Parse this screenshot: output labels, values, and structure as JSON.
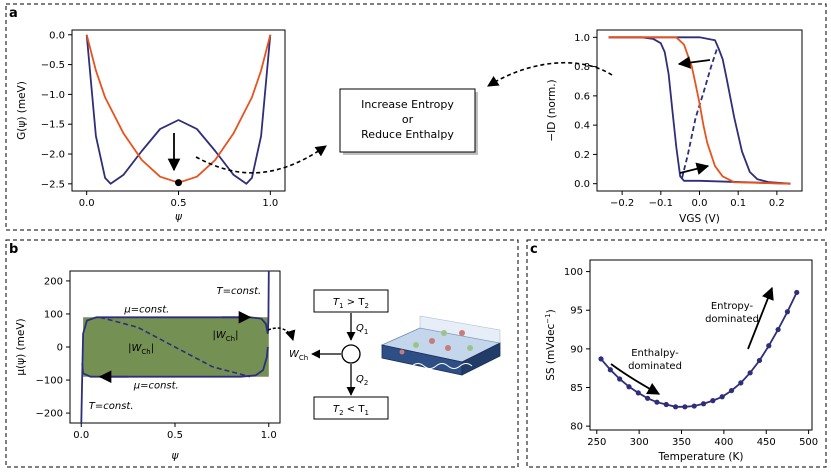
{
  "panel_labels": [
    "a",
    "b",
    "c"
  ],
  "colors": {
    "blue": "#2e2e7a",
    "orange": "#e8521c",
    "green": "#6e8a4a"
  },
  "chart_data": [
    {
      "id": "a_left",
      "type": "line",
      "xlabel": "ψ",
      "ylabel": "G(ψ) (meV)",
      "xlim": [
        -0.08,
        1.08
      ],
      "ylim": [
        -2.62,
        0.08
      ],
      "xticks": [
        0.0,
        0.5,
        1.0
      ],
      "xtick_labels": [
        "0.0",
        "0.5",
        "1.0"
      ],
      "yticks": [
        0.0,
        -0.5,
        -1.0,
        -1.5,
        -2.0,
        -2.5
      ],
      "ytick_labels": [
        "0.0",
        "−0.5",
        "−1.0",
        "−1.5",
        "−2.0",
        "−2.5"
      ],
      "series": [
        {
          "color": "#2e2e7a",
          "x": [
            0.0,
            0.05,
            0.1,
            0.13,
            0.2,
            0.3,
            0.4,
            0.5,
            0.6,
            0.7,
            0.8,
            0.87,
            0.9,
            0.95,
            1.0
          ],
          "y": [
            0.0,
            -1.7,
            -2.4,
            -2.5,
            -2.35,
            -1.95,
            -1.58,
            -1.43,
            -1.58,
            -1.95,
            -2.35,
            -2.5,
            -2.4,
            -1.7,
            0.0
          ]
        },
        {
          "color": "#e8521c",
          "x": [
            0.0,
            0.05,
            0.1,
            0.2,
            0.3,
            0.4,
            0.5,
            0.6,
            0.7,
            0.8,
            0.9,
            0.95,
            1.0
          ],
          "y": [
            0.0,
            -0.6,
            -1.05,
            -1.65,
            -2.1,
            -2.38,
            -2.48,
            -2.38,
            -2.1,
            -1.65,
            -1.05,
            -0.6,
            0.0
          ]
        }
      ]
    },
    {
      "id": "a_right",
      "type": "line",
      "xlabel": "VGS (V)",
      "ylabel": "−ID (norm.)",
      "xlim": [
        -0.265,
        0.265
      ],
      "ylim": [
        -0.05,
        1.05
      ],
      "xticks": [
        -0.2,
        -0.1,
        0.0,
        0.1,
        0.2
      ],
      "xtick_labels": [
        "−0.2",
        "−0.1",
        "0.0",
        "0.1",
        "0.2"
      ],
      "yticks": [
        0.0,
        0.2,
        0.4,
        0.6,
        0.8,
        1.0
      ],
      "ytick_labels": [
        "0.0",
        "0.2",
        "0.4",
        "0.6",
        "0.8",
        "1.0"
      ],
      "series": [
        {
          "color": "#2e2e7a",
          "style": "solid",
          "x": [
            -0.235,
            -0.15,
            -0.12,
            -0.1,
            -0.09,
            -0.08,
            -0.07,
            -0.06,
            -0.05,
            -0.04,
            0.0,
            0.235
          ],
          "y": [
            1.0,
            1.0,
            0.99,
            0.96,
            0.9,
            0.75,
            0.5,
            0.25,
            0.05,
            0.02,
            0.02,
            0.0
          ]
        },
        {
          "color": "#2e2e7a",
          "style": "solid",
          "x": [
            -0.235,
            0.0,
            0.04,
            0.05,
            0.06,
            0.07,
            0.09,
            0.11,
            0.13,
            0.15,
            0.18,
            0.235
          ],
          "y": [
            1.0,
            1.0,
            0.98,
            0.92,
            0.85,
            0.72,
            0.45,
            0.22,
            0.08,
            0.03,
            0.01,
            0.0
          ]
        },
        {
          "color": "#2e2e7a",
          "style": "dashed",
          "x": [
            -0.045,
            -0.03,
            -0.01,
            0.01,
            0.03,
            0.045
          ],
          "y": [
            0.04,
            0.2,
            0.45,
            0.62,
            0.8,
            0.92
          ]
        },
        {
          "color": "#e8521c",
          "style": "solid",
          "x": [
            -0.235,
            -0.06,
            -0.04,
            -0.02,
            -0.01,
            0.0,
            0.01,
            0.02,
            0.04,
            0.06,
            0.09,
            0.235
          ],
          "y": [
            1.0,
            1.0,
            0.95,
            0.8,
            0.68,
            0.55,
            0.4,
            0.28,
            0.12,
            0.05,
            0.01,
            0.0
          ]
        }
      ]
    },
    {
      "id": "b",
      "type": "area",
      "xlabel": "ψ",
      "ylabel": "μ(ψ) (meV)",
      "xlim": [
        -0.06,
        1.06
      ],
      "ylim": [
        -230,
        230
      ],
      "xticks": [
        0.0,
        0.5,
        1.0
      ],
      "xtick_labels": [
        "0.0",
        "0.5",
        "1.0"
      ],
      "yticks": [
        200,
        100,
        0,
        -100,
        -200
      ],
      "ytick_labels": [
        "200",
        "100",
        "0",
        "−100",
        "−200"
      ],
      "mu_const": 90,
      "annotations": [
        "μ=const.",
        "μ=const.",
        "T=const.",
        "T=const.",
        "|W",
        "Ch",
        "|",
        "|W",
        "Ch",
        "|"
      ],
      "series": [
        {
          "name": "",
          "color": "#2e2e7a",
          "style": "solid",
          "x": [
            0.0,
            0.005,
            0.01,
            0.02,
            0.05,
            0.1,
            0.9,
            0.95,
            0.98,
            0.99,
            0.995,
            1.0
          ],
          "y": [
            -230,
            -170,
            -120,
            20,
            80,
            90,
            90,
            85,
            60,
            0,
            120,
            230
          ]
        },
        {
          "name": "",
          "color": "#2e2e7a",
          "style": "dashed",
          "x": [
            0.1,
            0.3,
            0.5,
            0.7,
            0.9
          ],
          "y": [
            90,
            60,
            0,
            -60,
            -90
          ]
        }
      ]
    },
    {
      "id": "c",
      "type": "line",
      "xlabel": "Temperature (K)",
      "ylabel": "SS (mVdec",
      "ylabel_sup": "−1",
      "ylabel_tail": ")",
      "xlim": [
        242,
        504
      ],
      "ylim": [
        79.5,
        101.5
      ],
      "xticks": [
        250,
        300,
        350,
        400,
        450,
        500
      ],
      "xtick_labels": [
        "250",
        "300",
        "350",
        "400",
        "450",
        "500"
      ],
      "yticks": [
        80,
        85,
        90,
        95,
        100
      ],
      "ytick_labels": [
        "80",
        "85",
        "90",
        "95",
        "100"
      ],
      "series": [
        {
          "color": "#2e2e7a",
          "x": [
            255,
            266,
            277,
            288,
            299,
            310,
            321,
            332,
            343,
            354,
            365,
            376,
            387,
            398,
            409,
            420,
            431,
            442,
            453,
            464,
            475,
            486
          ],
          "y": [
            88.7,
            87.3,
            86.1,
            85.1,
            84.3,
            83.6,
            83.1,
            82.8,
            82.5,
            82.5,
            82.6,
            82.9,
            83.3,
            83.8,
            84.6,
            85.6,
            86.9,
            88.5,
            90.4,
            92.5,
            94.8,
            97.3
          ]
        }
      ],
      "annotations": [
        "Entropy-",
        "dominated",
        "Enthalpy-",
        "dominated"
      ]
    }
  ],
  "panel_a_box": [
    "Increase Entropy",
    "or",
    "Reduce Enthalpy"
  ],
  "panel_b_boxes": {
    "top": "T",
    "top_sub1": "1",
    "top_mid": " > T",
    "top_sub2": "2",
    "bottom": "T",
    "bottom_sub1": "2",
    "bottom_mid": " < T",
    "bottom_sub2": "1",
    "q1": "Q",
    "q1_sub": "1",
    "q2": "Q",
    "q2_sub": "2",
    "w": "W",
    "w_sub": "Ch"
  }
}
